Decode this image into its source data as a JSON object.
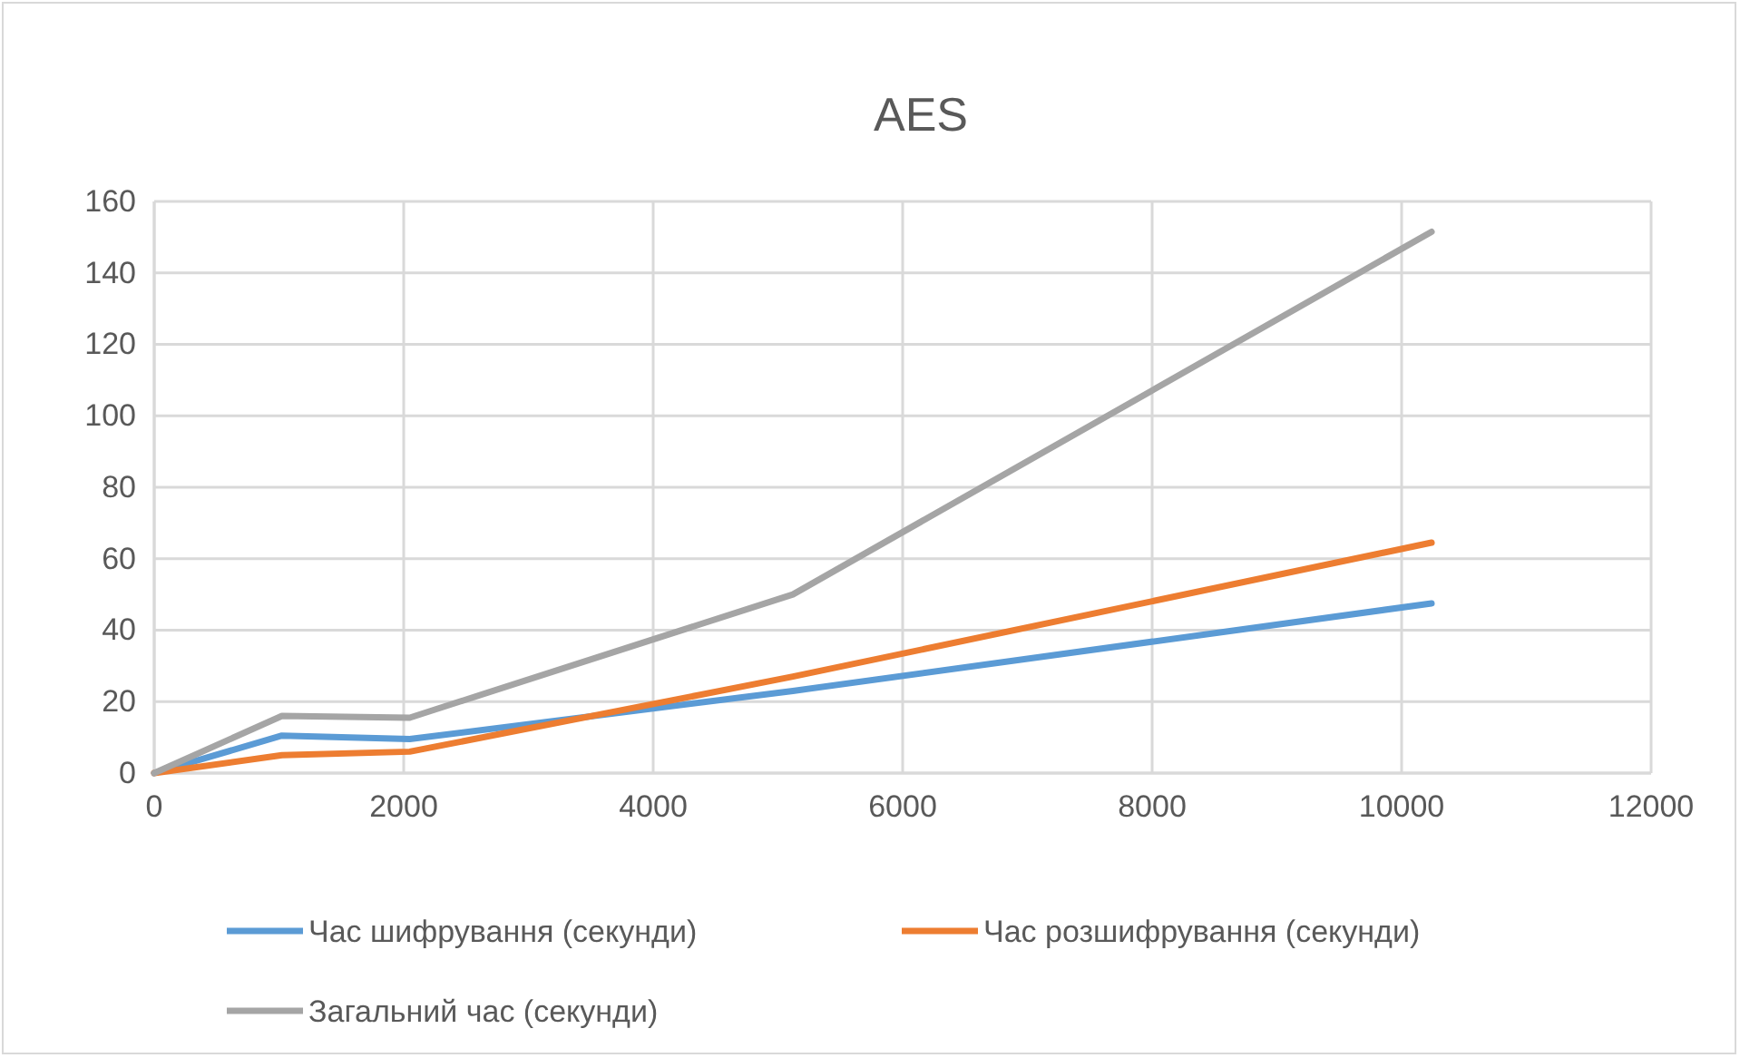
{
  "chart_data": {
    "type": "line",
    "title": "AES",
    "x": [
      0,
      1024,
      2048,
      5120,
      10240
    ],
    "series": [
      {
        "name": "Час шифрування (секунди)",
        "color": "#5b9bd5",
        "values": [
          0,
          10.5,
          9.5,
          23,
          47.5
        ]
      },
      {
        "name": "Час розшифрування (секунди)",
        "color": "#ed7d31",
        "values": [
          0,
          5,
          6,
          27,
          64.5
        ]
      },
      {
        "name": "Загальний час (секунди)",
        "color": "#a5a5a5",
        "values": [
          0,
          16,
          15.5,
          50,
          151.5
        ]
      }
    ],
    "xlim": [
      0,
      12000
    ],
    "xticks": [
      0,
      2000,
      4000,
      6000,
      8000,
      10000,
      12000
    ],
    "ylim": [
      0,
      160
    ],
    "yticks": [
      0,
      20,
      40,
      60,
      80,
      100,
      120,
      140,
      160
    ],
    "grid": true,
    "legend": "bottom",
    "marker": "none",
    "line_style": "solid"
  }
}
